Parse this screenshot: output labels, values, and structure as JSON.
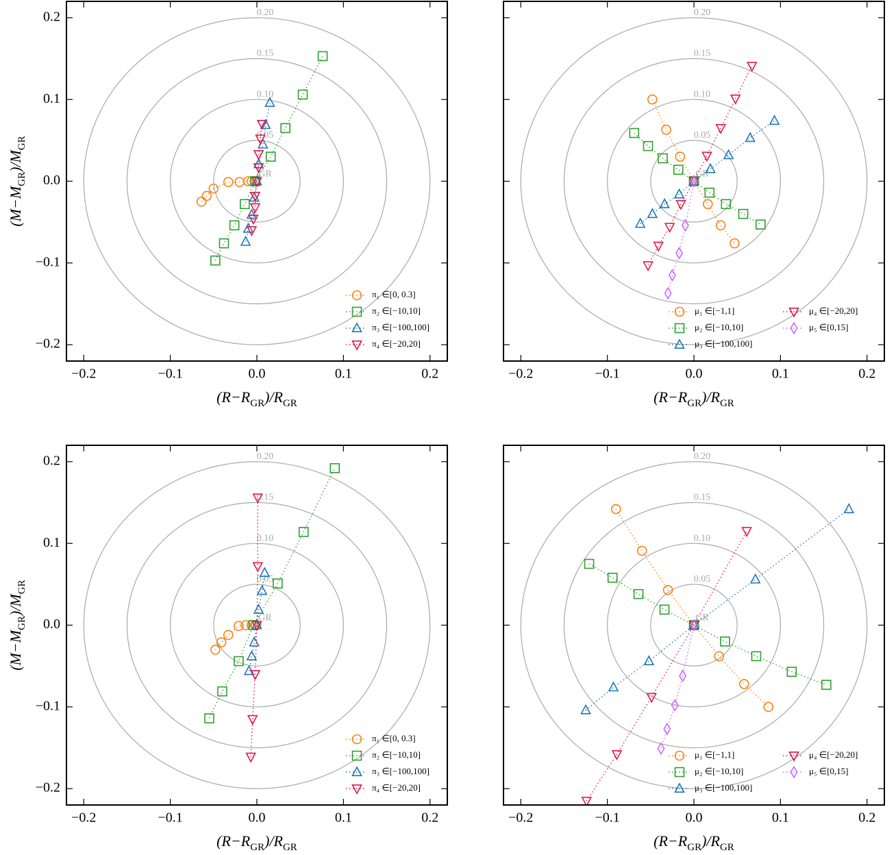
{
  "chart_data": [
    {
      "type": "scatter",
      "xlabel": "(R−RGR)/RGR",
      "ylabel": "(M−MGR)/MGR",
      "label_subscript": "GR",
      "xlim": [
        -0.22,
        0.22
      ],
      "ylim": [
        -0.22,
        0.22
      ],
      "xticks": [
        {
          "value": -0.2,
          "label": "−0.2"
        },
        {
          "value": -0.1,
          "label": "−0.1"
        },
        {
          "value": 0,
          "label": "0.0"
        },
        0.1,
        0.2
      ],
      "yticks": [
        {
          "value": -0.2,
          "label": "−0.2"
        },
        {
          "value": -0.1,
          "label": "−0.1"
        },
        {
          "value": 0,
          "label": "0.0"
        },
        0.1,
        0.2
      ],
      "show_ytick_labels": true,
      "circles": [
        {
          "value": 0.05,
          "label": "0.05"
        },
        {
          "value": 0.1,
          "label": "0.10"
        },
        {
          "value": 0.15,
          "label": "0.15"
        },
        {
          "value": 0.2,
          "label": "0.20"
        }
      ],
      "center_label": "GR",
      "legend": "lower right",
      "legend_columns": 1,
      "series": [
        {
          "name": "π₁ ∈[0, 0.3]",
          "color": "#ff7f0e",
          "marker": "circle",
          "x": [
            -0.064,
            -0.058,
            -0.05,
            -0.033,
            -0.02,
            -0.01,
            -0.006,
            -0.002
          ],
          "y": [
            -0.025,
            -0.018,
            -0.009,
            -0.001,
            -0.001,
            0,
            0,
            0
          ]
        },
        {
          "name": "π₂ ∈[−10,10]",
          "color": "#2ca02c",
          "marker": "square",
          "x": [
            -0.048,
            -0.038,
            -0.026,
            -0.014,
            -0.002,
            0.016,
            0.033,
            0.053,
            0.076
          ],
          "y": [
            -0.097,
            -0.076,
            -0.054,
            -0.028,
            0,
            0.03,
            0.065,
            0.106,
            0.153
          ]
        },
        {
          "name": "π₃ ∈[−100,100]",
          "color": "#1f77b4",
          "marker": "triangle-up",
          "x": [
            -0.013,
            -0.01,
            -0.006,
            -0.003,
            0,
            0.002,
            0.007,
            0.01,
            0.015
          ],
          "y": [
            -0.074,
            -0.058,
            -0.041,
            -0.02,
            0,
            0.021,
            0.045,
            0.069,
            0.096
          ]
        },
        {
          "name": "π₄ ∈[−20,20]",
          "color": "#e0194b",
          "marker": "triangle-down",
          "x": [
            -0.006,
            -0.004,
            -0.002,
            -0.002,
            0,
            0.002,
            0.002,
            0.004,
            0.006
          ],
          "y": [
            -0.06,
            -0.046,
            -0.032,
            -0.018,
            0,
            0.017,
            0.033,
            0.052,
            0.07
          ]
        }
      ]
    },
    {
      "type": "scatter",
      "xlabel": "(R−RGR)/RGR",
      "label_subscript": "GR",
      "xlim": [
        -0.22,
        0.22
      ],
      "ylim": [
        -0.22,
        0.22
      ],
      "xticks": [
        {
          "value": -0.2,
          "label": "−0.2"
        },
        {
          "value": -0.1,
          "label": "−0.1"
        },
        {
          "value": 0,
          "label": "0.0"
        },
        0.1,
        0.2
      ],
      "yticks": [
        -0.2,
        -0.1,
        0,
        0.1,
        0.2
      ],
      "show_ytick_labels": false,
      "circles": [
        {
          "value": 0.05,
          "label": "0.05"
        },
        {
          "value": 0.1,
          "label": "0.10"
        },
        {
          "value": 0.15,
          "label": "0.15"
        },
        {
          "value": 0.2,
          "label": "0.20"
        }
      ],
      "center_label": "GR",
      "legend": "lower right",
      "legend_columns": 2,
      "series": [
        {
          "name": "μ₁ ∈[−1,1]",
          "color": "#ff7f0e",
          "marker": "circle",
          "x": [
            -0.048,
            -0.032,
            -0.016,
            0,
            0.016,
            0.031,
            0.047
          ],
          "y": [
            0.1,
            0.063,
            0.03,
            0,
            -0.028,
            -0.054,
            -0.076
          ]
        },
        {
          "name": "μ₂ ∈[−10,10]",
          "color": "#2ca02c",
          "marker": "square",
          "x": [
            -0.069,
            -0.053,
            -0.036,
            -0.018,
            0,
            0.018,
            0.037,
            0.057,
            0.077
          ],
          "y": [
            0.059,
            0.043,
            0.028,
            0.014,
            0,
            -0.014,
            -0.028,
            -0.04,
            -0.053
          ]
        },
        {
          "name": "μ₃ ∈[−100,100]",
          "color": "#1f77b4",
          "marker": "triangle-up",
          "x": [
            -0.062,
            -0.048,
            -0.034,
            -0.017,
            0,
            0.019,
            0.04,
            0.065,
            0.093
          ],
          "y": [
            -0.052,
            -0.04,
            -0.028,
            -0.016,
            0,
            0.015,
            0.032,
            0.053,
            0.074
          ]
        },
        {
          "name": "μ₄ ∈[−20,20]",
          "color": "#e0194b",
          "marker": "triangle-down",
          "x": [
            -0.053,
            -0.041,
            -0.028,
            -0.015,
            0,
            0.015,
            0.031,
            0.048,
            0.067
          ],
          "y": [
            -0.103,
            -0.079,
            -0.056,
            -0.028,
            0,
            0.031,
            0.065,
            0.101,
            0.141
          ]
        },
        {
          "name": "μ₅ ∈[0,15]",
          "color": "#cc66ff",
          "marker": "diamond",
          "x": [
            -0.03,
            -0.025,
            -0.017,
            -0.01,
            0
          ],
          "y": [
            -0.137,
            -0.115,
            -0.088,
            -0.054,
            0
          ]
        }
      ]
    },
    {
      "type": "scatter",
      "xlabel": "(R−RGR)/RGR",
      "ylabel": "(M−MGR)/MGR",
      "label_subscript": "GR",
      "xlim": [
        -0.22,
        0.22
      ],
      "ylim": [
        -0.22,
        0.22
      ],
      "xticks": [
        {
          "value": -0.2,
          "label": "−0.2"
        },
        {
          "value": -0.1,
          "label": "−0.1"
        },
        {
          "value": 0,
          "label": "0.0"
        },
        0.1,
        0.2
      ],
      "yticks": [
        {
          "value": -0.2,
          "label": "−0.2"
        },
        {
          "value": -0.1,
          "label": "−0.1"
        },
        {
          "value": 0,
          "label": "0.0"
        },
        0.1,
        0.2
      ],
      "show_ytick_labels": true,
      "circles": [
        {
          "value": 0.05,
          "label": "0.05"
        },
        {
          "value": 0.1,
          "label": "0.10"
        },
        {
          "value": 0.15,
          "label": "0.15"
        },
        {
          "value": 0.2,
          "label": "0.20"
        }
      ],
      "center_label": "GR",
      "legend": "lower right",
      "legend_columns": 1,
      "series": [
        {
          "name": "π₁ ∈[0, 0.3]",
          "color": "#ff7f0e",
          "marker": "circle",
          "x": [
            -0.048,
            -0.041,
            -0.033,
            -0.021,
            -0.013,
            -0.006,
            -0.002,
            -0.001
          ],
          "y": [
            -0.03,
            -0.021,
            -0.012,
            -0.001,
            0,
            0,
            0,
            0
          ]
        },
        {
          "name": "π₂ ∈[−10,10]",
          "color": "#2ca02c",
          "marker": "square",
          "x": [
            -0.055,
            -0.04,
            -0.021,
            -0.004,
            0.024,
            0.054,
            0.09
          ],
          "y": [
            -0.114,
            -0.081,
            -0.044,
            0,
            0.051,
            0.114,
            0.192
          ]
        },
        {
          "name": "π₃ ∈[−100,100]",
          "color": "#1f77b4",
          "marker": "triangle-up",
          "x": [
            -0.009,
            -0.006,
            -0.003,
            0,
            0.002,
            0.006,
            0.009
          ],
          "y": [
            -0.056,
            -0.038,
            -0.021,
            0,
            0.019,
            0.042,
            0.064
          ]
        },
        {
          "name": "π₄ ∈[−20,20]",
          "color": "#e0194b",
          "marker": "triangle-down",
          "x": [
            -0.007,
            -0.005,
            -0.002,
            0,
            0.001,
            0.001
          ],
          "y": [
            -0.161,
            -0.115,
            -0.06,
            0,
            0.072,
            0.156
          ]
        }
      ]
    },
    {
      "type": "scatter",
      "xlabel": "(R−RGR)/RGR",
      "label_subscript": "GR",
      "xlim": [
        -0.22,
        0.22
      ],
      "ylim": [
        -0.22,
        0.22
      ],
      "xticks": [
        {
          "value": -0.2,
          "label": "−0.2"
        },
        {
          "value": -0.1,
          "label": "−0.1"
        },
        {
          "value": 0,
          "label": "0.0"
        },
        0.1,
        0.2
      ],
      "yticks": [
        -0.2,
        -0.1,
        0,
        0.1,
        0.2
      ],
      "show_ytick_labels": false,
      "circles": [
        {
          "value": 0.05,
          "label": "0.05"
        },
        {
          "value": 0.1,
          "label": "0.10"
        },
        {
          "value": 0.15,
          "label": "0.15"
        },
        {
          "value": 0.2,
          "label": "0.20"
        }
      ],
      "center_label": "GR",
      "legend": "lower right",
      "legend_columns": 2,
      "series": [
        {
          "name": "μ₁ ∈[−1,1]",
          "color": "#ff7f0e",
          "marker": "circle",
          "x": [
            -0.09,
            -0.06,
            -0.03,
            0,
            0.029,
            0.058,
            0.086
          ],
          "y": [
            0.142,
            0.091,
            0.043,
            0,
            -0.038,
            -0.072,
            -0.1
          ]
        },
        {
          "name": "μ₂ ∈[−10,10]",
          "color": "#2ca02c",
          "marker": "square",
          "x": [
            -0.121,
            -0.094,
            -0.064,
            -0.034,
            0,
            0.036,
            0.072,
            0.113,
            0.153
          ],
          "y": [
            0.075,
            0.058,
            0.038,
            0.019,
            0,
            -0.02,
            -0.038,
            -0.057,
            -0.073
          ]
        },
        {
          "name": "μ₃ ∈[−100,100]",
          "color": "#1f77b4",
          "marker": "triangle-up",
          "x": [
            -0.125,
            -0.093,
            -0.052,
            0,
            0.071,
            0.179
          ],
          "y": [
            -0.104,
            -0.076,
            -0.044,
            0,
            0.056,
            0.142
          ]
        },
        {
          "name": "μ₄ ∈[−20,20]",
          "color": "#e0194b",
          "marker": "triangle-down",
          "x": [
            -0.124,
            -0.089,
            -0.049,
            0,
            0.061
          ],
          "y": [
            -0.215,
            -0.158,
            -0.088,
            0,
            0.115
          ]
        },
        {
          "name": "μ₅ ∈[0,15]",
          "color": "#cc66ff",
          "marker": "diamond",
          "x": [
            -0.038,
            -0.031,
            -0.022,
            -0.013,
            0
          ],
          "y": [
            -0.151,
            -0.127,
            -0.098,
            -0.062,
            0
          ]
        }
      ]
    }
  ]
}
